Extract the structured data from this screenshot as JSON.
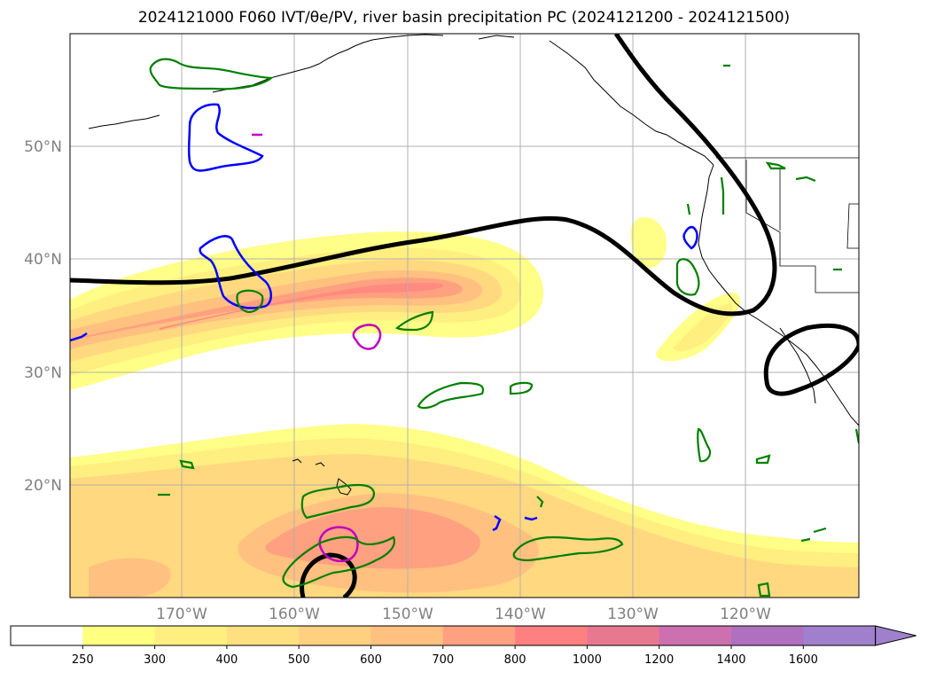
{
  "title": "2024121000 F060 IVT/θe/PV, river basin precipitation PC (2024121200 - 2024121500)",
  "map": {
    "lat_labels": [
      "50°N",
      "40°N",
      "30°N",
      "20°N"
    ],
    "lon_labels": [
      "170°W",
      "160°W",
      "150°W",
      "140°W",
      "130°W",
      "120°W"
    ],
    "grid_color": "#b0b0b0",
    "contour_colors": {
      "theta_e": "#000000",
      "pv_blue": "#0000ff",
      "pv_magenta": "#c000c0",
      "precip_green": "#008000"
    }
  },
  "colorbar": {
    "tick_labels": [
      "250",
      "300",
      "400",
      "500",
      "600",
      "700",
      "800",
      "1000",
      "1200",
      "1400",
      "1600"
    ],
    "colors": [
      "#ffffff",
      "#ffff80",
      "#ffee80",
      "#ffe080",
      "#ffd080",
      "#ffc080",
      "#ffa080",
      "#ff8080",
      "#e87890",
      "#cc70b0",
      "#b070c0",
      "#a080cc"
    ],
    "extend": "max"
  }
}
